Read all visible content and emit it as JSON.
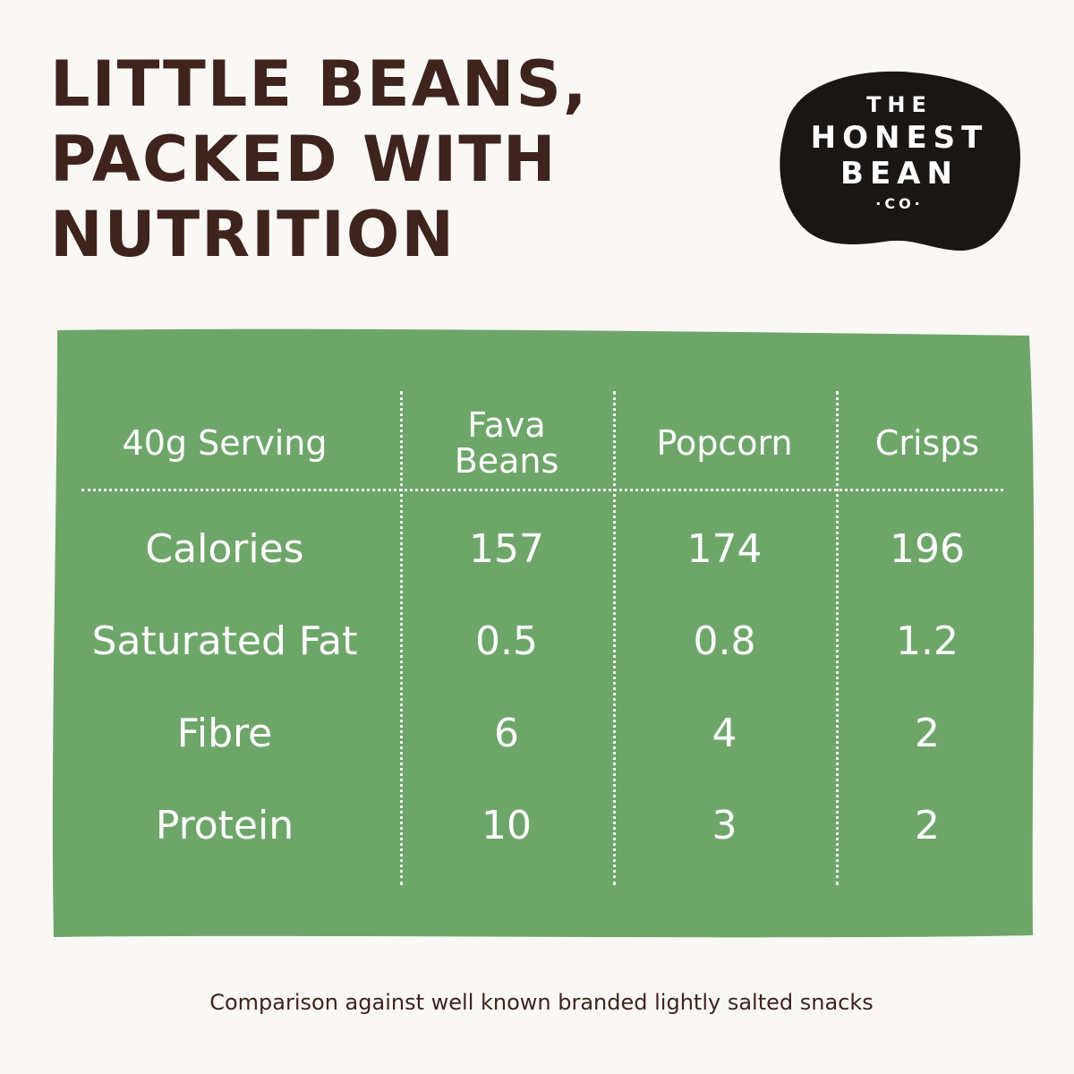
{
  "headline": {
    "lines": [
      "LITTLE BEANS,",
      "PACKED WITH",
      "NUTRITION"
    ]
  },
  "logo": {
    "line1": "THE",
    "line2": "HONEST",
    "line3": "BEAN",
    "line4": "·CO·"
  },
  "table": {
    "headers": [
      "40g Serving",
      "Fava Beans",
      "Popcorn",
      "Crisps"
    ],
    "rows": [
      {
        "label": "Calories",
        "values": [
          "157",
          "174",
          "196"
        ]
      },
      {
        "label": "Saturated Fat",
        "values": [
          "0.5",
          "0.8",
          "1.2"
        ]
      },
      {
        "label": "Fibre",
        "values": [
          "6",
          "4",
          "2"
        ]
      },
      {
        "label": "Protein",
        "values": [
          "10",
          "3",
          "2"
        ]
      }
    ]
  },
  "footnote": "Comparison against well known branded lightly salted snacks",
  "colors": {
    "background": "#f9f8f5",
    "headline": "#3f231d",
    "panel": "#6ea66a",
    "logo_blob": "#1a1614",
    "text_on_panel": "#ffffff"
  }
}
